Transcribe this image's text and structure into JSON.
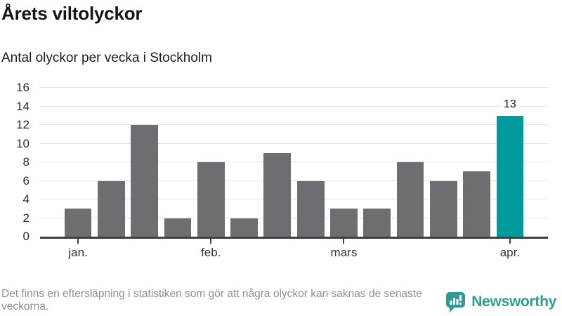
{
  "chart_data": {
    "type": "bar",
    "title": "Årets viltolyckor",
    "subtitle": "Antal olyckor per vecka i Stockholm",
    "xlabel": "",
    "ylabel": "",
    "ylim": [
      0,
      16
    ],
    "y_ticks": [
      0,
      2,
      4,
      6,
      8,
      10,
      12,
      14,
      16
    ],
    "grid": true,
    "legend": "none",
    "values": [
      3,
      6,
      12,
      2,
      8,
      2,
      9,
      6,
      3,
      3,
      8,
      6,
      7,
      13
    ],
    "highlighted_index": 13,
    "highlighted_value_label": "13",
    "month_ticks": [
      {
        "label": "jan.",
        "bar_index": 0
      },
      {
        "label": "feb.",
        "bar_index": 4
      },
      {
        "label": "mars",
        "bar_index": 8
      },
      {
        "label": "apr.",
        "bar_index": 13
      }
    ],
    "colors": {
      "bar": "#6e6d72",
      "highlight": "#009a9b",
      "grid": "#e3e3e3",
      "axis": "#3f3f3f"
    }
  },
  "footer": {
    "note": "Det finns en eftersläpning i statistiken som gör att några olyckor kan saknas de senaste veckorna.",
    "brand": "Newsworthy",
    "brand_color": "#2f9c94",
    "logo_icon": "speech-bubble-bar-chart-exclamation-icon"
  }
}
